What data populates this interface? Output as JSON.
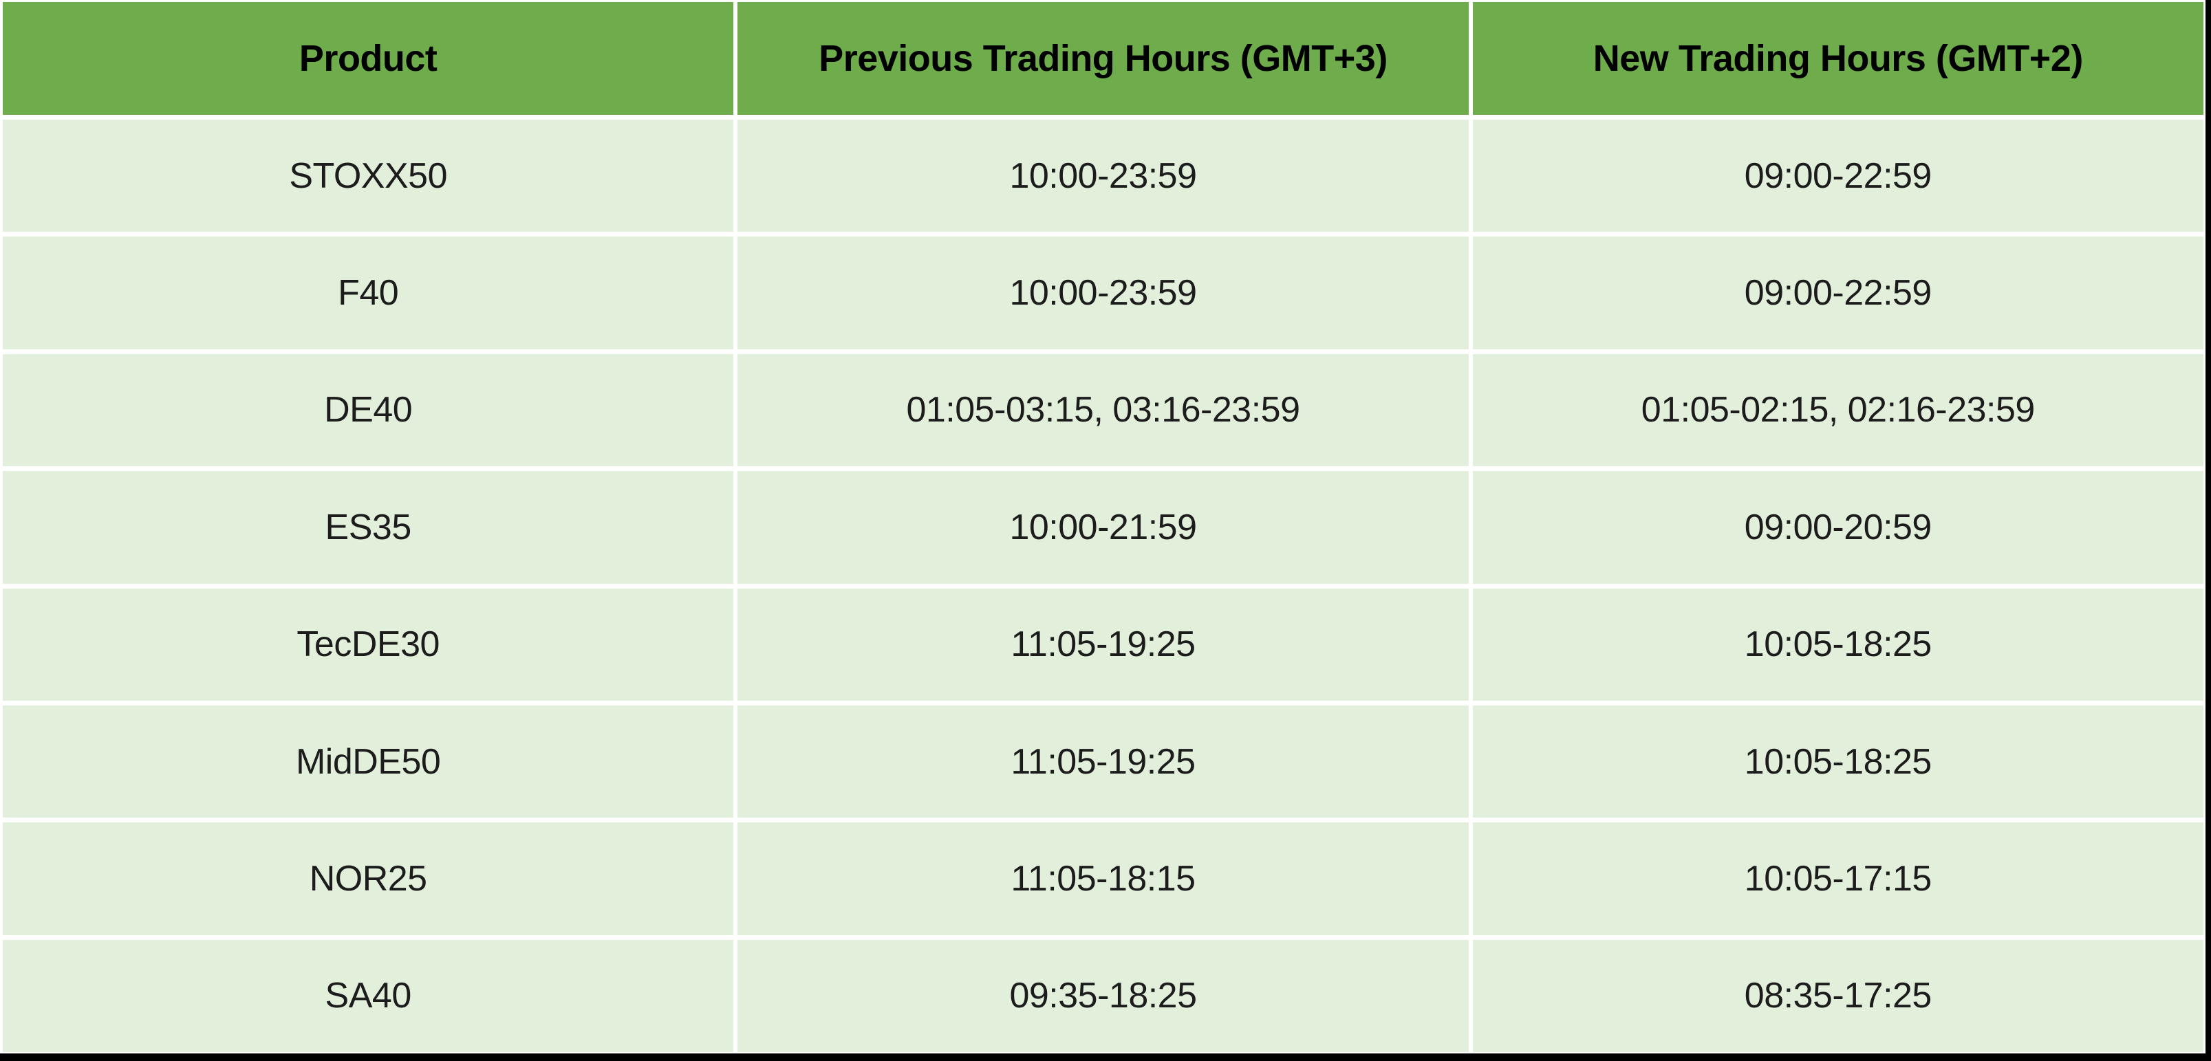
{
  "table": {
    "header": {
      "product": "Product",
      "previous": "Previous Trading Hours (GMT+3)",
      "new": "New Trading Hours (GMT+2)"
    },
    "rows": [
      {
        "product": "STOXX50",
        "previous": "10:00-23:59",
        "new": "09:00-22:59"
      },
      {
        "product": "F40",
        "previous": "10:00-23:59",
        "new": "09:00-22:59"
      },
      {
        "product": "DE40",
        "previous": "01:05-03:15, 03:16-23:59",
        "new": "01:05-02:15, 02:16-23:59"
      },
      {
        "product": "ES35",
        "previous": "10:00-21:59",
        "new": "09:00-20:59"
      },
      {
        "product": "TecDE30",
        "previous": "11:05-19:25",
        "new": "10:05-18:25"
      },
      {
        "product": "MidDE50",
        "previous": "11:05-19:25",
        "new": "10:05-18:25"
      },
      {
        "product": "NOR25",
        "previous": "11:05-18:15",
        "new": "10:05-17:15"
      },
      {
        "product": "SA40",
        "previous": "09:35-18:25",
        "new": "08:35-17:25"
      }
    ]
  },
  "colors": {
    "header_bg": "#6FAC4B",
    "row_bg": "#E2EFDA",
    "gridline": "#FFFFFF",
    "frame_bar": "#000000",
    "header_text": "#000000",
    "body_text": "#1C1C1C"
  }
}
